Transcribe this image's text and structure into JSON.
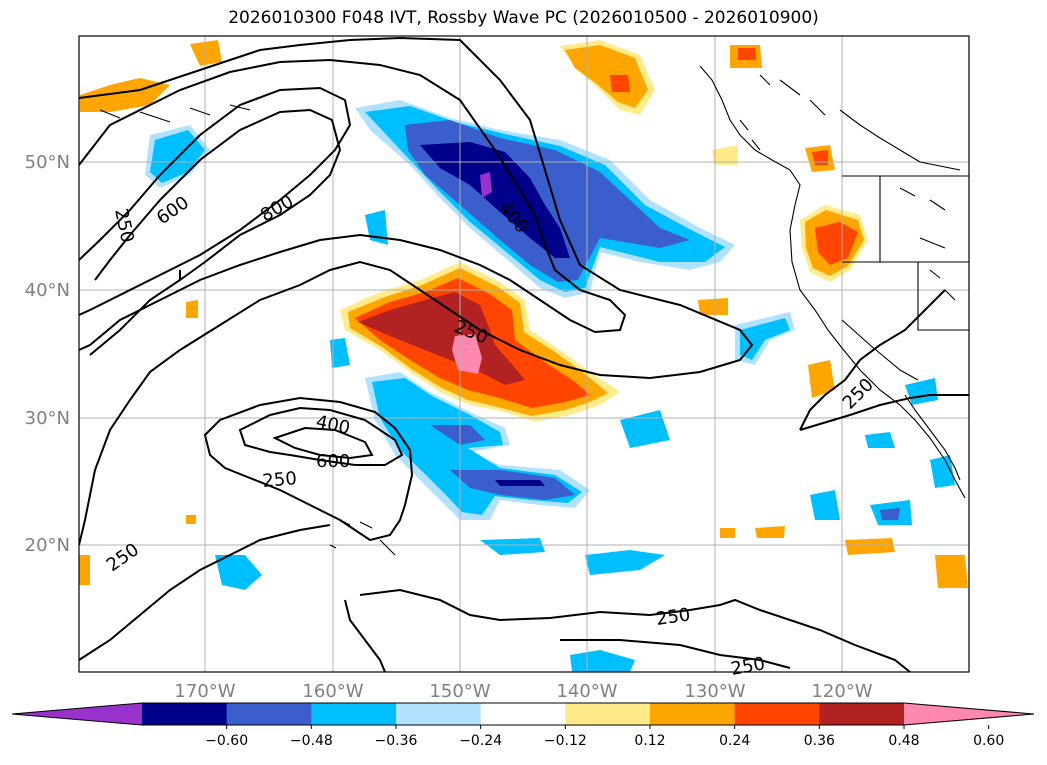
{
  "title": "2026010300 F048 IVT, Rossby Wave PC (2026010500 - 2026010900)",
  "map": {
    "lat_labels": [
      "50°N",
      "40°N",
      "30°N",
      "20°N"
    ],
    "lon_labels": [
      "170°W",
      "160°W",
      "150°W",
      "140°W",
      "130°W",
      "120°W"
    ]
  },
  "contour_labels": [
    "250",
    "600",
    "800",
    "400",
    "250",
    "400",
    "600",
    "250",
    "250",
    "250",
    "250",
    "250"
  ],
  "colorbar": {
    "ticks": [
      "−0.60",
      "−0.48",
      "−0.36",
      "−0.24",
      "−0.12",
      "0.12",
      "0.24",
      "0.36",
      "0.48",
      "0.60"
    ],
    "colors": [
      "#9932cc",
      "#00008b",
      "#3a5fcd",
      "#00bfff",
      "#b0e2ff",
      "#ffffff",
      "#ffeb8a",
      "#ffa500",
      "#ff4500",
      "#b22222",
      "#ff88b0"
    ]
  }
}
